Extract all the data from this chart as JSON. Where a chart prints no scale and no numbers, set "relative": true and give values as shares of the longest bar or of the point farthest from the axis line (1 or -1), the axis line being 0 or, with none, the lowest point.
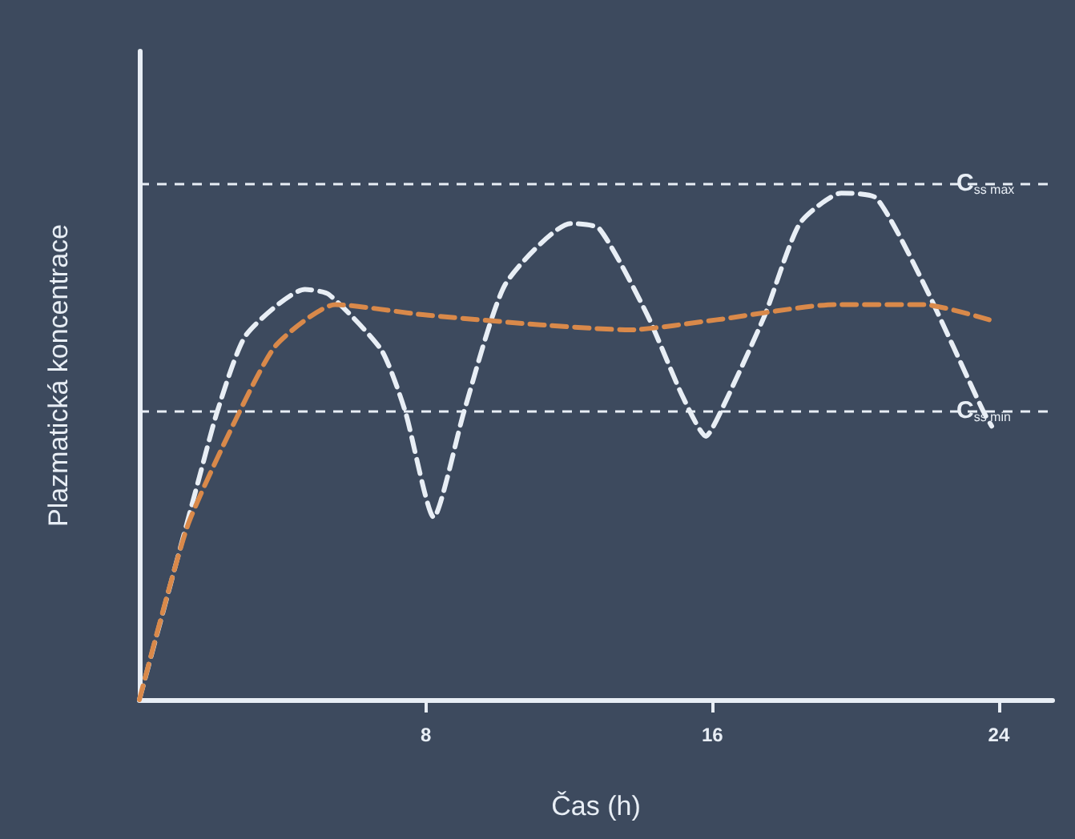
{
  "chart_data": {
    "type": "line",
    "relative": true,
    "xlabel": "Čas (h)",
    "ylabel": "Plazmatická koncentrace",
    "xlim": [
      0,
      25.5
    ],
    "xticks": [
      8,
      16,
      24
    ],
    "grid": false,
    "marker": "none",
    "line_style": "dashed",
    "series": [
      {
        "color": "#e8eef5",
        "x": [
          0,
          1.64,
          2.18,
          2.98,
          4.62,
          5.29,
          6.76,
          7.42,
          8.22,
          9.07,
          10.22,
          12.04,
          12.84,
          14.18,
          15.16,
          15.82,
          16.31,
          17.47,
          18.44,
          19.6,
          20.58,
          21.91,
          23.56,
          23.8
        ],
        "values": [
          0,
          0.43,
          0.57,
          0.72,
          0.81,
          0.8,
          0.69,
          0.57,
          0.36,
          0.57,
          0.82,
          0.94,
          0.93,
          0.76,
          0.6,
          0.52,
          0.58,
          0.76,
          0.94,
          1,
          0.99,
          0.82,
          0.57,
          0.54
        ]
      },
      {
        "color": "#d9894a",
        "x": [
          0,
          1.33,
          2.67,
          3.82,
          5.47,
          7.91,
          11.2,
          13.69,
          16.13,
          19.42,
          21.91,
          23.73
        ],
        "values": [
          0,
          0.34,
          0.55,
          0.7,
          0.78,
          0.76,
          0.74,
          0.73,
          0.75,
          0.78,
          0.78,
          0.75
        ]
      }
    ],
    "ref_lines": [
      {
        "axis": "y",
        "value": 1.02,
        "label": "C$_{ss max}$",
        "color": "#e8eef5",
        "line_style": "dashed"
      },
      {
        "axis": "y",
        "value": 0.57,
        "label": "C$_{ss min}$",
        "color": "#e8eef5",
        "line_style": "dashed"
      }
    ]
  }
}
